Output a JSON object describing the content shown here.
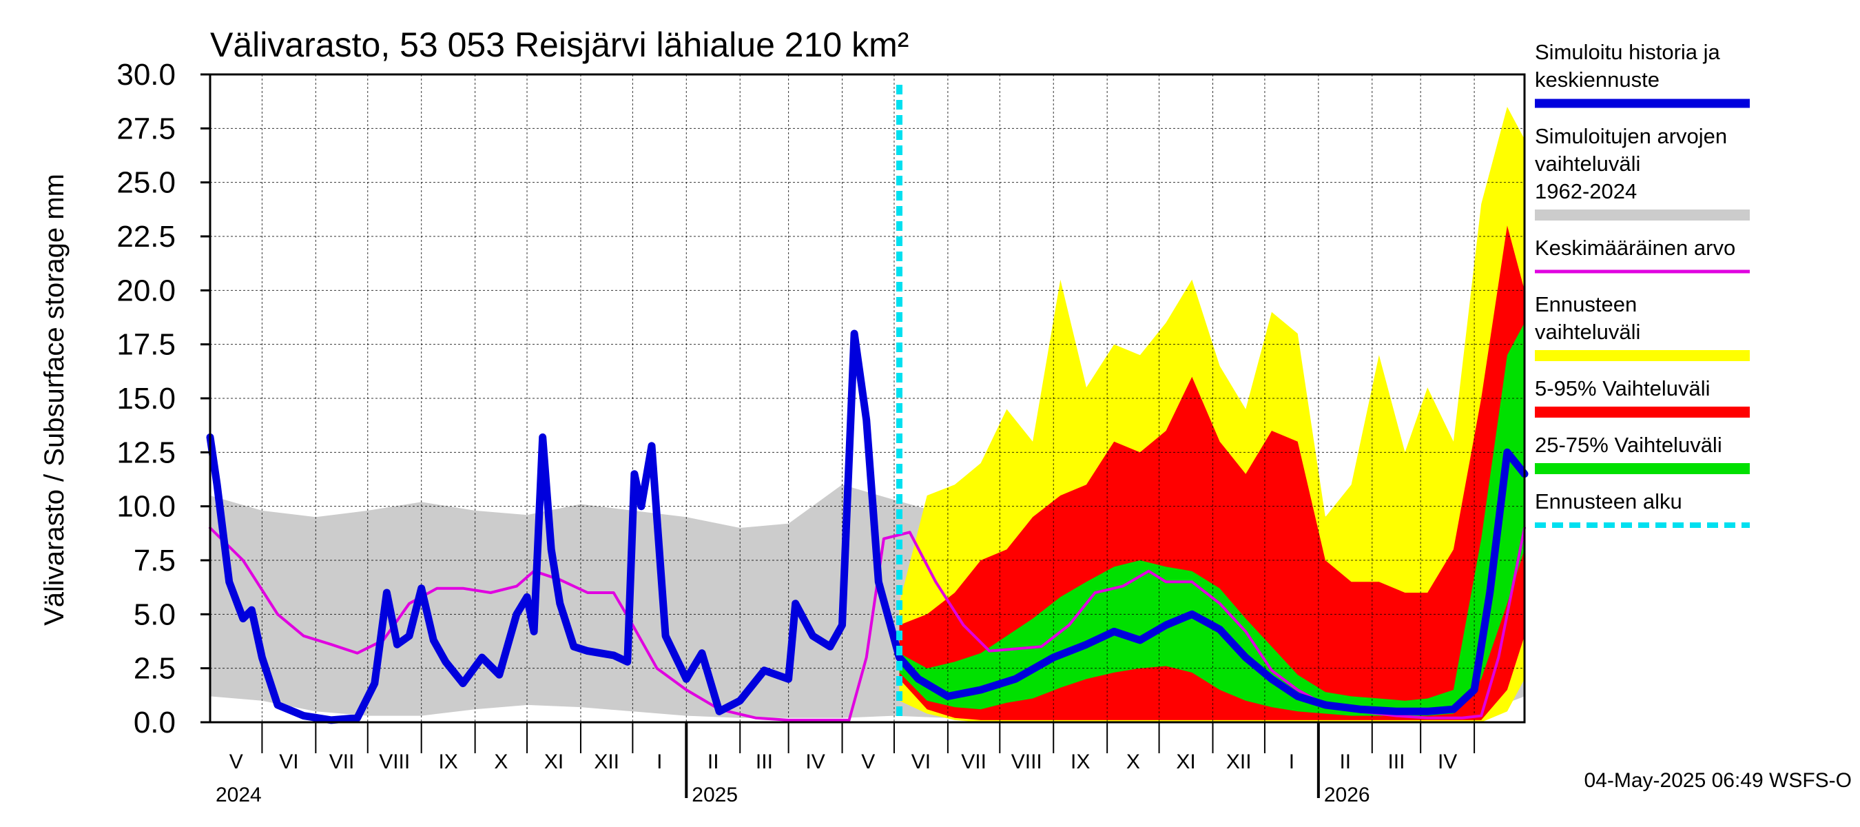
{
  "chart_data": {
    "type": "area",
    "title": "Välivarasto, 53 053 Reisjärvi lähialue 210 km²",
    "ylabel": "Välivarasto / Subsurface storage  mm",
    "ylim": [
      0,
      30
    ],
    "yticks": [
      "0.0",
      "2.5",
      "5.0",
      "7.5",
      "10.0",
      "12.5",
      "15.0",
      "17.5",
      "20.0",
      "22.5",
      "25.0",
      "27.5",
      "30.0"
    ],
    "grid": true,
    "legend_position": "right",
    "xlim": [
      "2024-04-01",
      "2026-04-30"
    ],
    "forecast_start": "2025-05-04",
    "timestamp": "04-May-2025 06:49 WSFS-O",
    "x_month_labels": [
      "V",
      "VI",
      "VII",
      "VIII",
      "IX",
      "X",
      "XI",
      "XII",
      "I",
      "II",
      "III",
      "IV",
      "V",
      "VI",
      "VII",
      "VIII",
      "IX",
      "X",
      "XI",
      "XII",
      "I",
      "II",
      "III",
      "IV"
    ],
    "x_year_labels": [
      "2024",
      "2025",
      "2026"
    ],
    "legend": [
      {
        "label": "Simuloitu historia ja keskiennuste",
        "color": "#0000dd",
        "style": "thick"
      },
      {
        "label": "Simuloitujen arvojen vaihteluväli 1962-2024",
        "color": "#cccccc",
        "style": "band"
      },
      {
        "label": "Keskimääräinen arvo",
        "color": "#e000e0",
        "style": "thin"
      },
      {
        "label": "Ennusteen vaihteluväli",
        "color": "#ffff00",
        "style": "band"
      },
      {
        "label": "5-95% Vaihteluväli",
        "color": "#ff0000",
        "style": "band"
      },
      {
        "label": "25-75% Vaihteluväli",
        "color": "#00e000",
        "style": "band"
      },
      {
        "label": "Ennusteen alku",
        "color": "#00e0f0",
        "style": "dashed"
      }
    ],
    "series": [
      {
        "name": "Simuloitujen arvojen vaihteluväli 1962-2024",
        "type": "band",
        "x": [
          "2024-04-01",
          "2024-05-01",
          "2024-06-01",
          "2024-07-01",
          "2024-08-01",
          "2024-09-01",
          "2024-10-01",
          "2024-11-01",
          "2024-12-01",
          "2025-01-01",
          "2025-02-01",
          "2025-03-01",
          "2025-04-01",
          "2025-05-01",
          "2025-06-01",
          "2025-07-01",
          "2025-08-01",
          "2025-09-01",
          "2025-10-01",
          "2025-11-01",
          "2025-12-01",
          "2026-01-01",
          "2026-02-01",
          "2026-03-01",
          "2026-04-01",
          "2026-04-30"
        ],
        "low": [
          1.2,
          1.0,
          0.5,
          0.3,
          0.3,
          0.6,
          0.8,
          0.7,
          0.5,
          0.3,
          0.2,
          0.2,
          0.2,
          0.3,
          0.2,
          0.1,
          0.1,
          0.2,
          0.4,
          0.5,
          0.3,
          0.2,
          0.2,
          0.2,
          0.3,
          1.2
        ],
        "high": [
          10.5,
          9.8,
          9.5,
          9.8,
          10.2,
          9.8,
          9.6,
          10.1,
          9.8,
          9.5,
          9.0,
          9.2,
          11.0,
          10.3,
          9.6,
          9.6,
          9.8,
          9.8,
          10.0,
          9.8,
          9.8,
          9.6,
          9.2,
          9.4,
          9.8,
          11.8
        ]
      },
      {
        "name": "Ennusteen vaihteluväli",
        "type": "band",
        "x": [
          "2025-05-04",
          "2025-05-20",
          "2025-06-05",
          "2025-06-20",
          "2025-07-05",
          "2025-07-20",
          "2025-08-05",
          "2025-08-20",
          "2025-09-05",
          "2025-09-20",
          "2025-10-05",
          "2025-10-20",
          "2025-11-05",
          "2025-11-20",
          "2025-12-05",
          "2025-12-20",
          "2026-01-05",
          "2026-01-20",
          "2026-02-05",
          "2026-02-20",
          "2026-03-05",
          "2026-03-20",
          "2026-04-05",
          "2026-04-20",
          "2026-04-30"
        ],
        "low": [
          1.0,
          0.4,
          0.1,
          0.0,
          0.0,
          0.0,
          0.0,
          0.0,
          0.0,
          0.0,
          0.0,
          0.0,
          0.0,
          0.0,
          0.0,
          0.0,
          0.0,
          0.0,
          0.0,
          0.0,
          0.0,
          0.0,
          0.0,
          0.5,
          2.0
        ],
        "high": [
          5.5,
          10.5,
          11.0,
          12.0,
          14.5,
          13.0,
          20.5,
          15.5,
          17.5,
          17.0,
          18.5,
          20.5,
          16.5,
          14.5,
          19.0,
          18.0,
          9.5,
          11.0,
          17.0,
          12.5,
          15.5,
          13.0,
          24.0,
          28.5,
          27.0
        ]
      },
      {
        "name": "5-95% Vaihteluväli",
        "type": "band",
        "x": [
          "2025-05-04",
          "2025-05-20",
          "2025-06-05",
          "2025-06-20",
          "2025-07-05",
          "2025-07-20",
          "2025-08-05",
          "2025-08-20",
          "2025-09-05",
          "2025-09-20",
          "2025-10-05",
          "2025-10-20",
          "2025-11-05",
          "2025-11-20",
          "2025-12-05",
          "2025-12-20",
          "2026-01-05",
          "2026-01-20",
          "2026-02-05",
          "2026-02-20",
          "2026-03-05",
          "2026-03-20",
          "2026-04-05",
          "2026-04-20",
          "2026-04-30"
        ],
        "low": [
          2.0,
          0.6,
          0.2,
          0.1,
          0.1,
          0.1,
          0.1,
          0.1,
          0.1,
          0.1,
          0.1,
          0.1,
          0.1,
          0.1,
          0.1,
          0.1,
          0.1,
          0.1,
          0.1,
          0.1,
          0.1,
          0.1,
          0.1,
          1.5,
          4.0
        ],
        "high": [
          4.5,
          5.0,
          6.0,
          7.5,
          8.0,
          9.5,
          10.5,
          11.0,
          13.0,
          12.5,
          13.5,
          16.0,
          13.0,
          11.5,
          13.5,
          13.0,
          7.5,
          6.5,
          6.5,
          6.0,
          6.0,
          8.0,
          15.0,
          23.0,
          20.0
        ]
      },
      {
        "name": "25-75% Vaihteluväli",
        "type": "band",
        "x": [
          "2025-05-04",
          "2025-05-20",
          "2025-06-05",
          "2025-06-20",
          "2025-07-05",
          "2025-07-20",
          "2025-08-05",
          "2025-08-20",
          "2025-09-05",
          "2025-09-20",
          "2025-10-05",
          "2025-10-20",
          "2025-11-05",
          "2025-11-20",
          "2025-12-05",
          "2025-12-20",
          "2026-01-05",
          "2026-01-20",
          "2026-02-05",
          "2026-02-20",
          "2026-03-05",
          "2026-03-20",
          "2026-04-05",
          "2026-04-20",
          "2026-04-30"
        ],
        "low": [
          2.3,
          1.0,
          0.7,
          0.6,
          0.9,
          1.1,
          1.6,
          2.0,
          2.3,
          2.5,
          2.6,
          2.3,
          1.5,
          1.0,
          0.7,
          0.5,
          0.4,
          0.3,
          0.3,
          0.3,
          0.3,
          0.4,
          2.0,
          5.5,
          8.0
        ],
        "high": [
          3.2,
          2.5,
          2.8,
          3.2,
          4.0,
          4.8,
          5.8,
          6.5,
          7.2,
          7.5,
          7.2,
          7.0,
          6.2,
          4.8,
          3.5,
          2.2,
          1.4,
          1.2,
          1.1,
          1.0,
          1.1,
          1.5,
          8.5,
          17.0,
          18.5
        ]
      },
      {
        "name": "Keskimääräinen arvo",
        "type": "line",
        "x": [
          "2024-04-01",
          "2024-04-20",
          "2024-05-10",
          "2024-05-25",
          "2024-06-10",
          "2024-06-25",
          "2024-07-10",
          "2024-07-25",
          "2024-08-10",
          "2024-08-25",
          "2024-09-10",
          "2024-09-25",
          "2024-10-05",
          "2024-10-20",
          "2024-11-05",
          "2024-11-20",
          "2024-12-01",
          "2024-12-15",
          "2025-01-01",
          "2025-01-20",
          "2025-02-10",
          "2025-03-01",
          "2025-03-20",
          "2025-04-05",
          "2025-04-15",
          "2025-04-25",
          "2025-05-10",
          "2025-05-25",
          "2025-06-10",
          "2025-06-25",
          "2025-07-10",
          "2025-07-25",
          "2025-08-10",
          "2025-08-25",
          "2025-09-10",
          "2025-09-25",
          "2025-10-05",
          "2025-10-20",
          "2025-11-05",
          "2025-11-20",
          "2025-12-05",
          "2025-12-20",
          "2026-01-05",
          "2026-01-25",
          "2026-02-15",
          "2026-03-05",
          "2026-03-25",
          "2026-04-05",
          "2026-04-15",
          "2026-04-30"
        ],
        "values": [
          9.0,
          7.5,
          5.0,
          4.0,
          3.6,
          3.2,
          3.8,
          5.5,
          6.2,
          6.2,
          6.0,
          6.3,
          7.0,
          6.6,
          6.0,
          6.0,
          4.5,
          2.5,
          1.5,
          0.6,
          0.2,
          0.1,
          0.1,
          0.1,
          3.0,
          8.5,
          8.8,
          6.5,
          4.5,
          3.3,
          3.4,
          3.5,
          4.5,
          6.0,
          6.3,
          7.0,
          6.5,
          6.5,
          5.5,
          4.2,
          2.4,
          1.5,
          0.8,
          0.5,
          0.3,
          0.2,
          0.2,
          0.3,
          3.0,
          9.0
        ]
      },
      {
        "name": "Simuloitu historia ja keskiennuste",
        "type": "line",
        "x": [
          "2024-04-01",
          "2024-04-05",
          "2024-04-12",
          "2024-04-20",
          "2024-04-25",
          "2024-05-01",
          "2024-05-10",
          "2024-05-25",
          "2024-06-10",
          "2024-06-25",
          "2024-07-05",
          "2024-07-12",
          "2024-07-18",
          "2024-07-25",
          "2024-08-01",
          "2024-08-08",
          "2024-08-15",
          "2024-08-25",
          "2024-09-05",
          "2024-09-15",
          "2024-09-25",
          "2024-10-01",
          "2024-10-05",
          "2024-10-10",
          "2024-10-15",
          "2024-10-20",
          "2024-10-28",
          "2024-11-05",
          "2024-11-20",
          "2024-11-28",
          "2024-12-02",
          "2024-12-06",
          "2024-12-12",
          "2024-12-20",
          "2025-01-01",
          "2025-01-10",
          "2025-01-20",
          "2025-02-01",
          "2025-02-15",
          "2025-03-01",
          "2025-03-05",
          "2025-03-15",
          "2025-03-25",
          "2025-04-01",
          "2025-04-08",
          "2025-04-15",
          "2025-04-22",
          "2025-05-04",
          "2025-05-15",
          "2025-06-01",
          "2025-06-20",
          "2025-07-10",
          "2025-08-01",
          "2025-08-20",
          "2025-09-05",
          "2025-09-20",
          "2025-10-05",
          "2025-10-20",
          "2025-11-05",
          "2025-11-20",
          "2025-12-05",
          "2025-12-20",
          "2026-01-05",
          "2026-01-25",
          "2026-02-15",
          "2026-03-05",
          "2026-03-20",
          "2026-04-01",
          "2026-04-10",
          "2026-04-20",
          "2026-04-30"
        ],
        "values": [
          13.2,
          11.0,
          6.5,
          4.8,
          5.2,
          3.0,
          0.8,
          0.3,
          0.1,
          0.2,
          1.8,
          6.0,
          3.6,
          4.0,
          6.2,
          3.8,
          2.8,
          1.8,
          3.0,
          2.2,
          5.0,
          5.8,
          4.2,
          13.2,
          8.0,
          5.5,
          3.5,
          3.3,
          3.1,
          2.8,
          11.5,
          10.0,
          12.8,
          4.0,
          2.0,
          3.2,
          0.5,
          1.0,
          2.4,
          2.0,
          5.5,
          4.0,
          3.5,
          4.5,
          18.0,
          14.0,
          6.5,
          3.0,
          2.0,
          1.2,
          1.5,
          2.0,
          3.0,
          3.6,
          4.2,
          3.8,
          4.5,
          5.0,
          4.3,
          3.0,
          2.0,
          1.2,
          0.8,
          0.6,
          0.5,
          0.5,
          0.6,
          1.5,
          6.0,
          12.5,
          11.5
        ]
      }
    ]
  }
}
